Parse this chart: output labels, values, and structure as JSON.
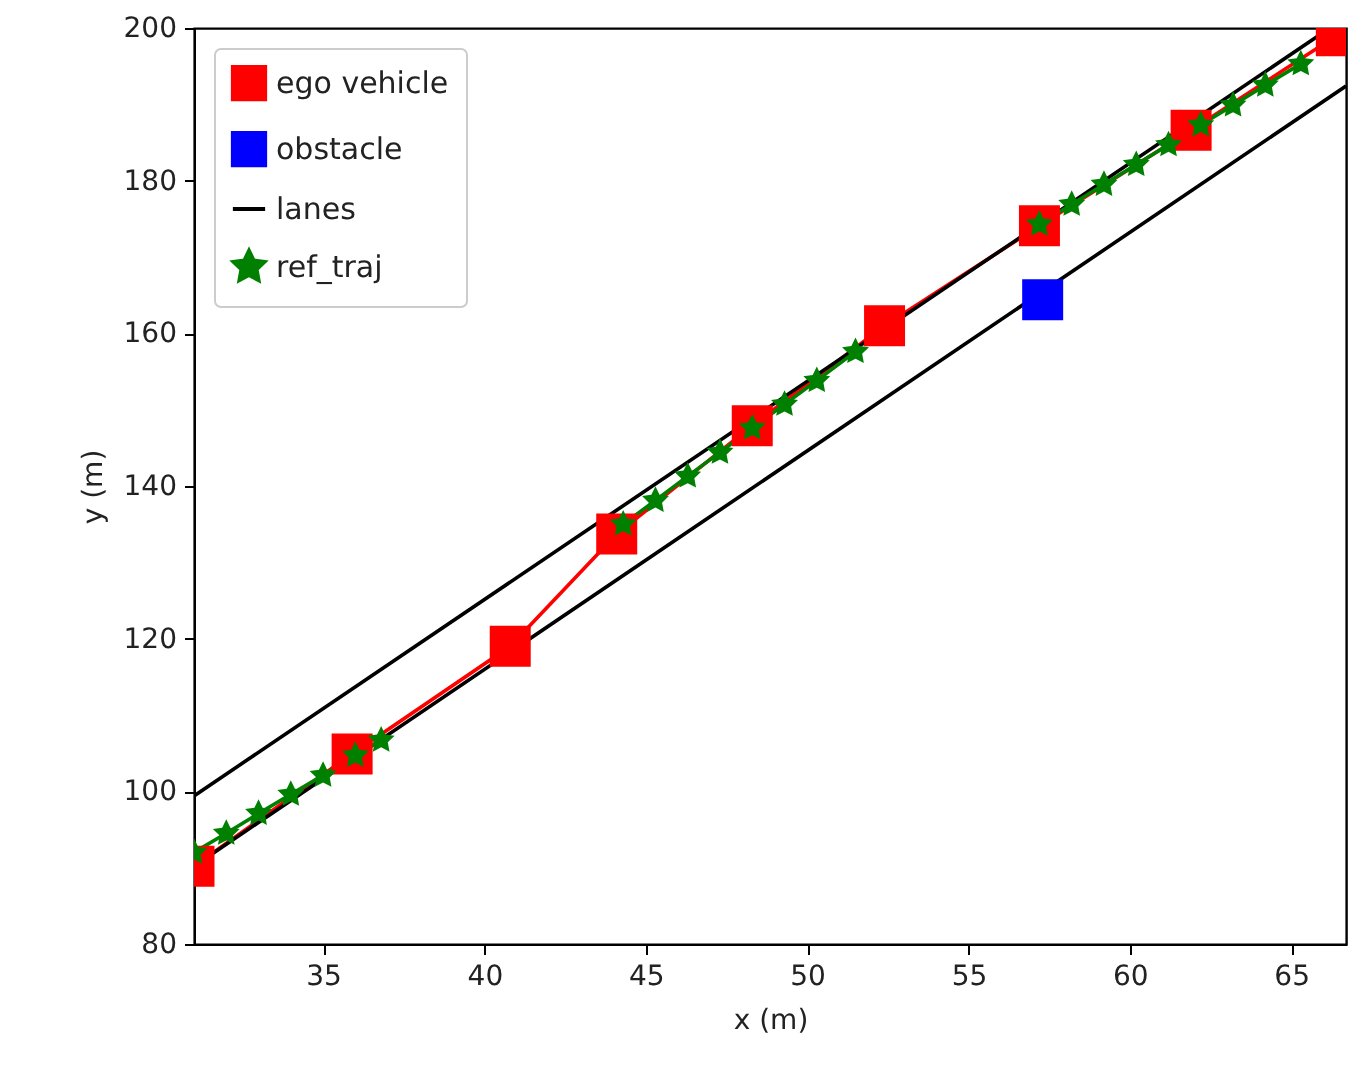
{
  "chart_data": {
    "type": "line",
    "xlabel": "x (m)",
    "ylabel": "y (m)",
    "xlim": [
      31,
      66.7
    ],
    "ylim": [
      80,
      200
    ],
    "xticks": [
      35,
      40,
      45,
      50,
      55,
      60,
      65
    ],
    "yticks": [
      80,
      100,
      120,
      140,
      160,
      180,
      200
    ],
    "grid": false,
    "legend": "top left",
    "series": [
      {
        "name": "ego vehicle",
        "color": "#ff0000",
        "marker": "square",
        "x": [
          31,
          35.9,
          40.8,
          44.1,
          48.3,
          52.4,
          57.2,
          61.9,
          66.4
        ],
        "values": [
          90.2,
          104.9,
          119.0,
          133.7,
          147.9,
          161.0,
          174.1,
          186.6,
          199.0
        ]
      },
      {
        "name": "obstacle",
        "type": "scatter",
        "color": "#0000ff",
        "marker": "square",
        "x": [
          57.3
        ],
        "values": [
          164.4
        ]
      },
      {
        "name": "lanes",
        "color": "#000000",
        "marker": "none",
        "x": [
          31,
          66.2,
          null,
          31,
          66.7
        ],
        "values": [
          99.4,
          200,
          null,
          90.2,
          192.4
        ]
      },
      {
        "name": "ref_traj",
        "color": "#008000",
        "marker": "star",
        "x": [
          31,
          32,
          33,
          34,
          35,
          36,
          36.8,
          null,
          44.3,
          45.3,
          46.3,
          47.3,
          48.3,
          49.3,
          50.3,
          51.5,
          null,
          57.2,
          58.2,
          59.2,
          60.2,
          61.2,
          62.2,
          63.2,
          64.2,
          65.3
        ],
        "values": [
          92.0,
          94.5,
          97.1,
          99.6,
          102.1,
          104.7,
          106.7,
          null,
          135.0,
          138.1,
          141.3,
          144.4,
          147.6,
          150.7,
          153.8,
          157.6,
          null,
          174.3,
          176.9,
          179.5,
          182.1,
          184.7,
          187.3,
          189.9,
          192.5,
          195.3
        ]
      }
    ]
  }
}
